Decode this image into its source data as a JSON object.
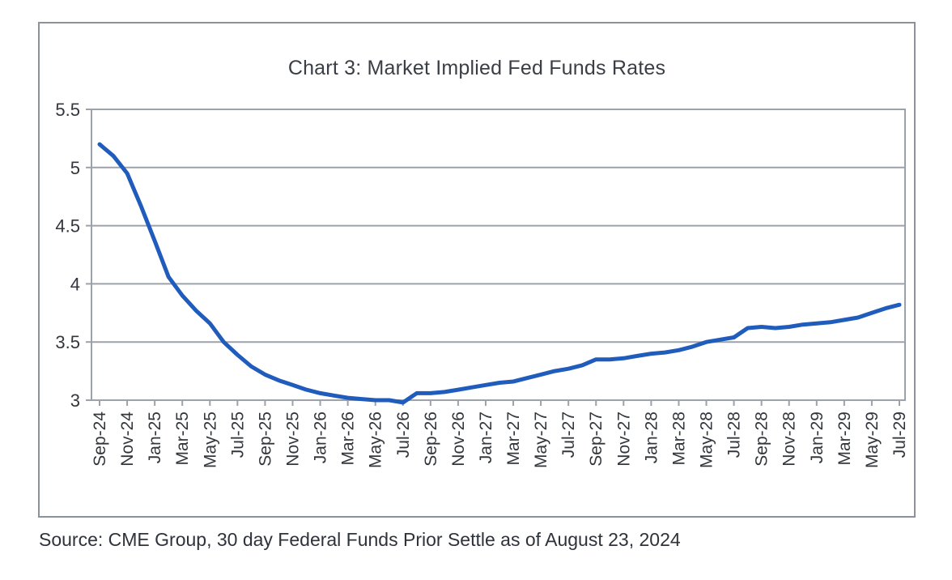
{
  "colors": {
    "line": "#205CBC",
    "grid": "#9CA2A7",
    "frame_border": "#8B9299",
    "axis_text": "#33373D",
    "title_text": "#3A3E45",
    "source_text": "#2E323A",
    "background": "#FFFFFF"
  },
  "chart_data": {
    "type": "line",
    "title": "Chart 3: Market Implied Fed Funds Rates",
    "source": "Source: CME Group, 30 day Federal Funds Prior Settle as of August 23, 2024",
    "xlabel": "",
    "ylabel": "",
    "ylim": [
      3,
      5.5
    ],
    "yticks": [
      3,
      3.5,
      4,
      4.5,
      5,
      5.5
    ],
    "ytick_labels": [
      "3",
      "3.5",
      "4",
      "4.5",
      "5",
      "5.5"
    ],
    "grid": "horizontal",
    "legend": "none",
    "x_tick_labels": [
      "Sep-24",
      "Nov-24",
      "Jan-25",
      "Mar-25",
      "May-25",
      "Jul-25",
      "Sep-25",
      "Nov-25",
      "Jan-26",
      "Mar-26",
      "May-26",
      "Jul-26",
      "Sep-26",
      "Nov-26",
      "Jan-27",
      "Mar-27",
      "May-27",
      "Jul-27",
      "Sep-27",
      "Nov-27",
      "Jan-28",
      "Mar-28",
      "May-28",
      "Jul-28",
      "Sep-28",
      "Nov-28",
      "Jan-29",
      "Mar-29",
      "May-29",
      "Jul-29"
    ],
    "x": [
      "Sep-24",
      "Oct-24",
      "Nov-24",
      "Dec-24",
      "Jan-25",
      "Feb-25",
      "Mar-25",
      "Apr-25",
      "May-25",
      "Jun-25",
      "Jul-25",
      "Aug-25",
      "Sep-25",
      "Oct-25",
      "Nov-25",
      "Dec-25",
      "Jan-26",
      "Feb-26",
      "Mar-26",
      "Apr-26",
      "May-26",
      "Jun-26",
      "Jul-26",
      "Aug-26",
      "Sep-26",
      "Oct-26",
      "Nov-26",
      "Dec-26",
      "Jan-27",
      "Feb-27",
      "Mar-27",
      "Apr-27",
      "May-27",
      "Jun-27",
      "Jul-27",
      "Aug-27",
      "Sep-27",
      "Oct-27",
      "Nov-27",
      "Dec-27",
      "Jan-28",
      "Feb-28",
      "Mar-28",
      "Apr-28",
      "May-28",
      "Jun-28",
      "Jul-28",
      "Aug-28",
      "Sep-28",
      "Oct-28",
      "Nov-28",
      "Dec-28",
      "Jan-29",
      "Feb-29",
      "Mar-29",
      "Apr-29",
      "May-29",
      "Jun-29",
      "Jul-29"
    ],
    "values": [
      5.2,
      5.1,
      4.95,
      4.67,
      4.37,
      4.06,
      3.9,
      3.77,
      3.66,
      3.5,
      3.39,
      3.29,
      3.22,
      3.17,
      3.13,
      3.09,
      3.06,
      3.04,
      3.02,
      3.01,
      3.0,
      3.0,
      2.98,
      3.06,
      3.06,
      3.07,
      3.09,
      3.11,
      3.13,
      3.15,
      3.16,
      3.19,
      3.22,
      3.25,
      3.27,
      3.3,
      3.35,
      3.35,
      3.36,
      3.38,
      3.4,
      3.41,
      3.43,
      3.46,
      3.5,
      3.52,
      3.54,
      3.62,
      3.63,
      3.62,
      3.63,
      3.65,
      3.66,
      3.67,
      3.69,
      3.71,
      3.75,
      3.79,
      3.82
    ]
  }
}
